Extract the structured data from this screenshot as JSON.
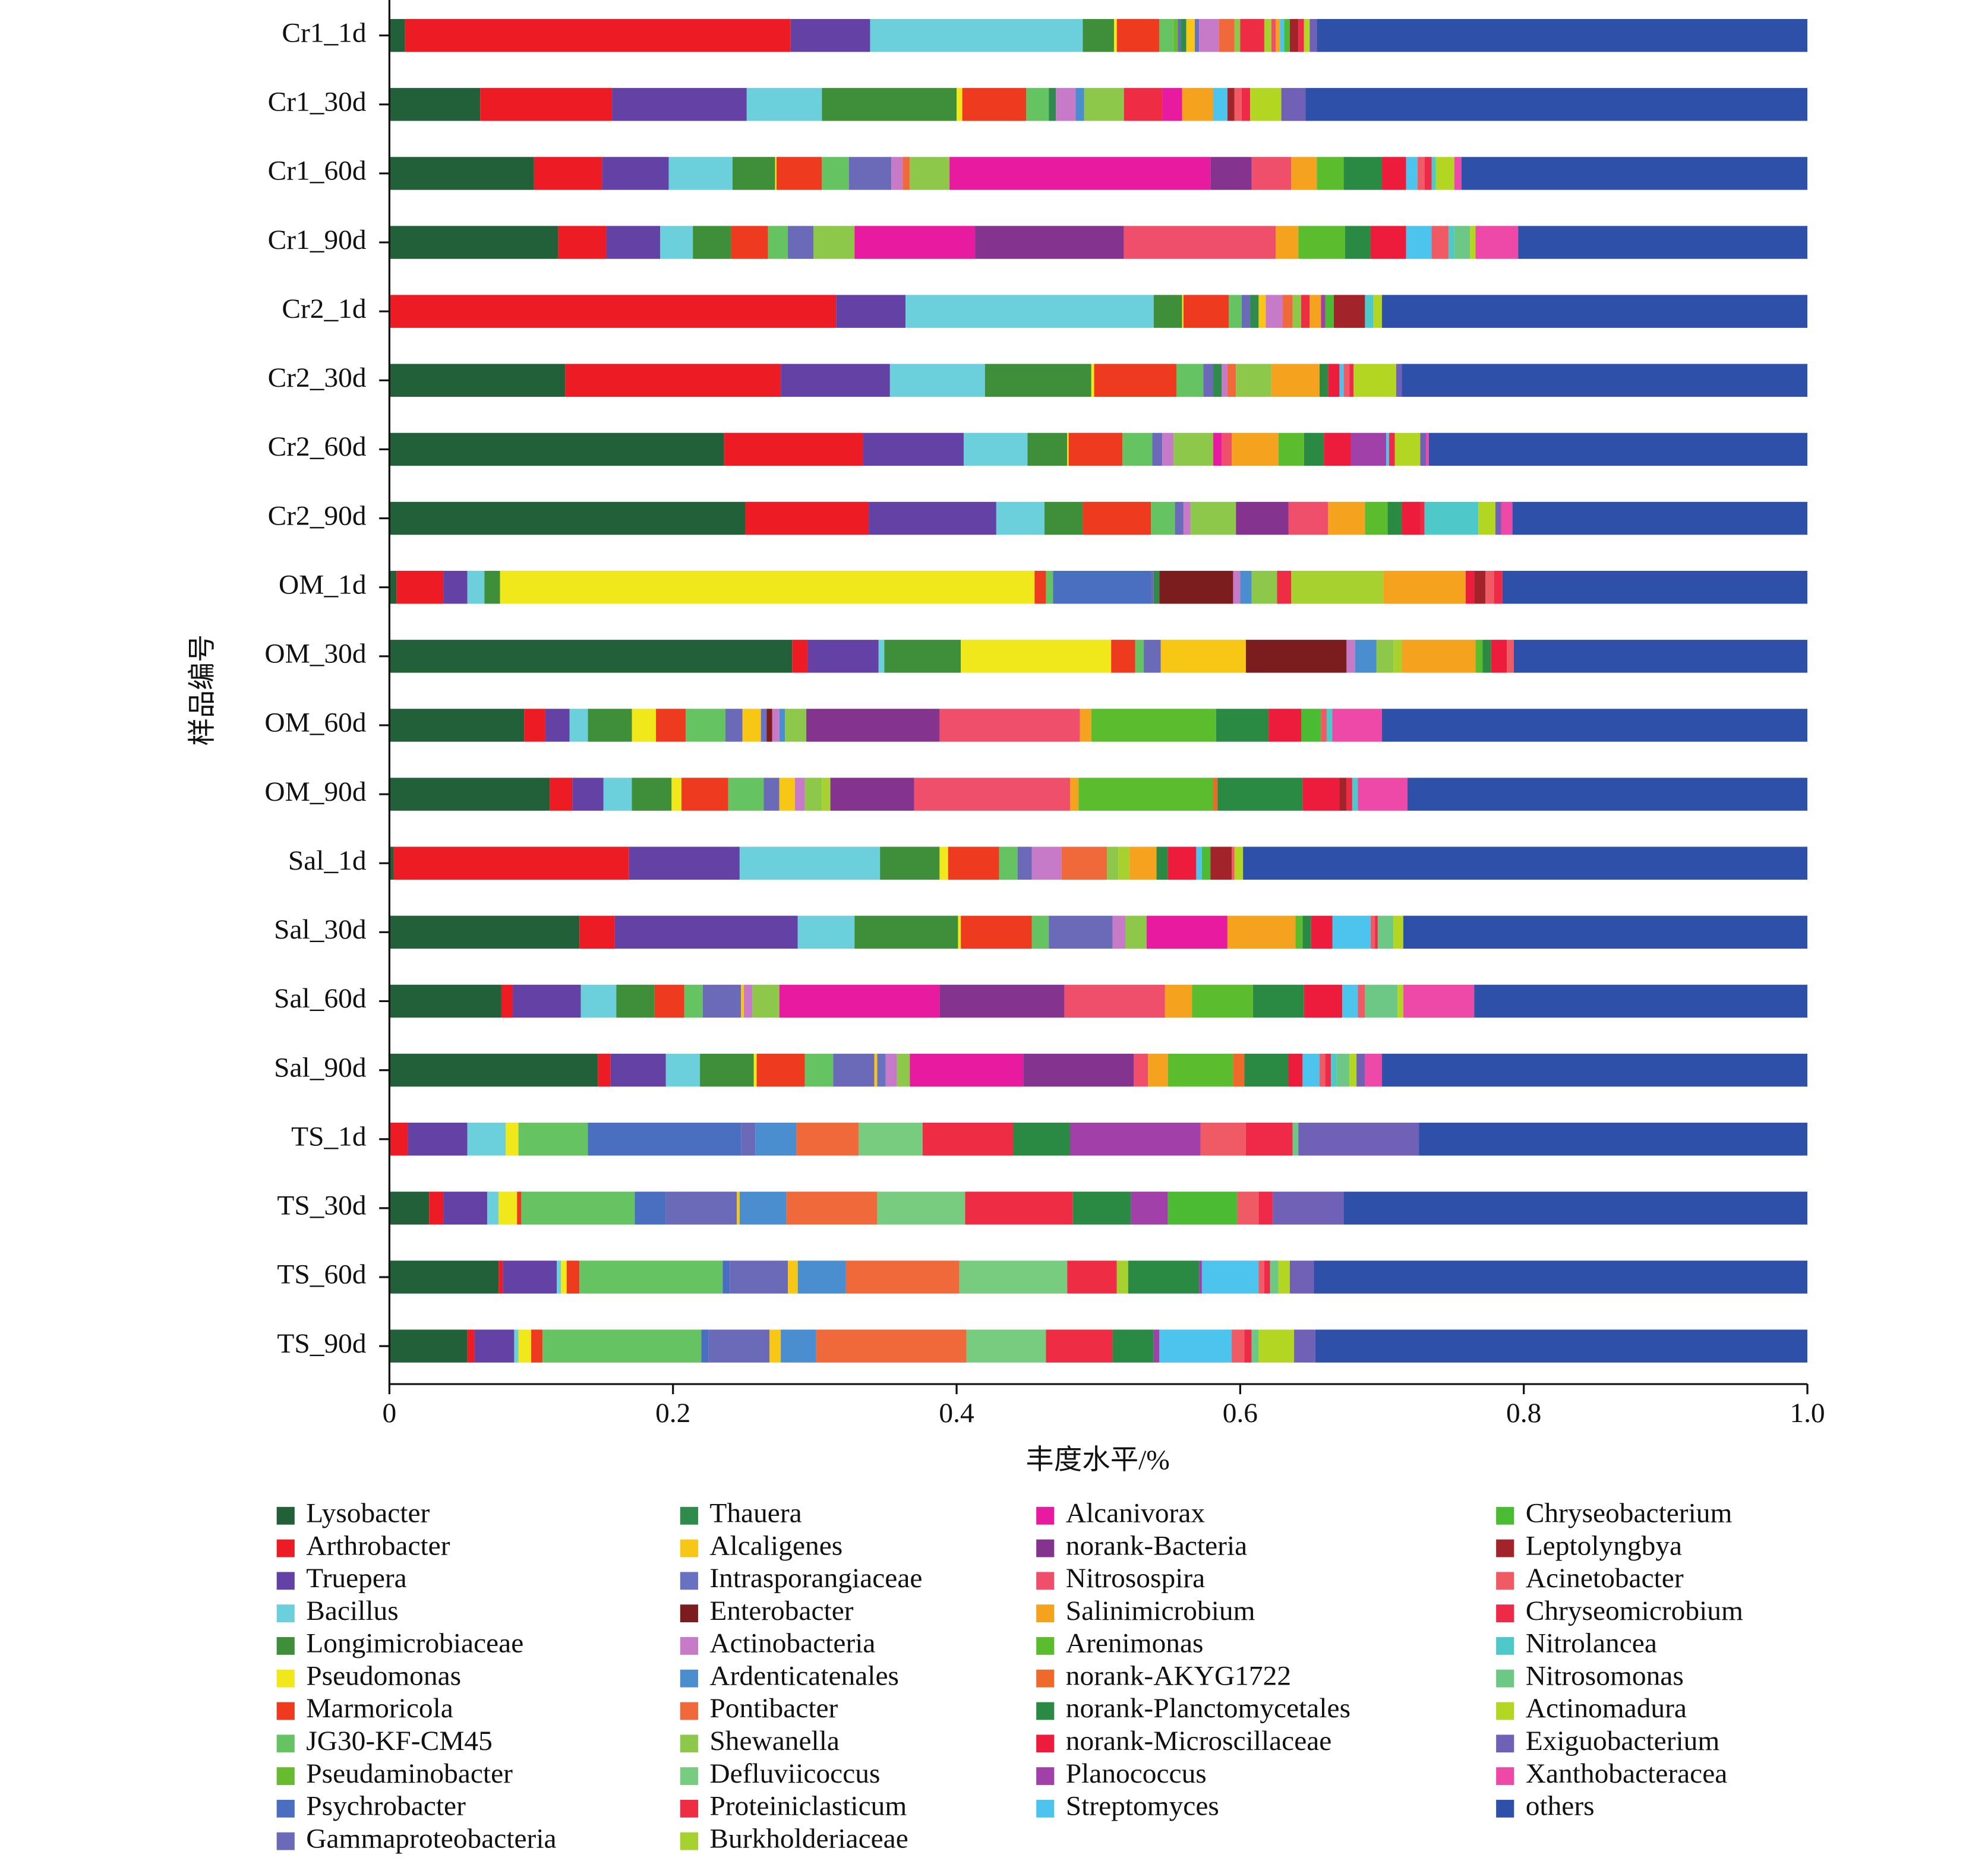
{
  "chart_data": {
    "type": "bar",
    "orientation": "horizontal",
    "stacked": true,
    "xlabel": "丰度水平/%",
    "ylabel": "样品编号",
    "categories": [
      "Cr1_1d",
      "Cr1_30d",
      "Cr1_60d",
      "Cr1_90d",
      "Cr2_1d",
      "Cr2_30d",
      "Cr2_60d",
      "Cr2_90d",
      "OM_1d",
      "OM_30d",
      "OM_60d",
      "OM_90d",
      "Sal_1d",
      "Sal_30d",
      "Sal_60d",
      "Sal_90d",
      "TS_1d",
      "TS_30d",
      "TS_60d",
      "TS_90d"
    ],
    "xlim": [
      0,
      1
    ],
    "xticks": [
      0,
      0.2,
      0.4,
      0.6,
      0.8,
      {
        "value": 1,
        "label": "1.0"
      }
    ],
    "series": [
      {
        "name": "Lysobacter",
        "color": "#22603a",
        "values": [
          0.011,
          0.064,
          0.102,
          0.119,
          0,
          0.124,
          0.236,
          0.251,
          0.005,
          0.284,
          0.095,
          0.113,
          0.003,
          0.134,
          0.079,
          0.147,
          0,
          0.028,
          0.077,
          0.055
        ]
      },
      {
        "name": "Arthrobacter",
        "color": "#ed1c24",
        "values": [
          0.272,
          0.093,
          0.048,
          0.034,
          0.315,
          0.152,
          0.098,
          0.087,
          0.033,
          0.011,
          0.015,
          0.016,
          0.166,
          0.025,
          0.008,
          0.009,
          0.013,
          0.01,
          0.003,
          0.005
        ]
      },
      {
        "name": "Truepera",
        "color": "#6441a4",
        "values": [
          0.056,
          0.095,
          0.047,
          0.038,
          0.049,
          0.077,
          0.071,
          0.09,
          0.017,
          0.05,
          0.017,
          0.022,
          0.078,
          0.129,
          0.048,
          0.039,
          0.042,
          0.031,
          0.038,
          0.028
        ]
      },
      {
        "name": "Bacillus",
        "color": "#6ccfdc",
        "values": [
          0.15,
          0.053,
          0.045,
          0.023,
          0.175,
          0.067,
          0.045,
          0.034,
          0.012,
          0.004,
          0.013,
          0.02,
          0.099,
          0.04,
          0.025,
          0.024,
          0.027,
          0.008,
          0.003,
          0.003
        ]
      },
      {
        "name": "Longimicrobiaceae",
        "color": "#3f8f3a",
        "values": [
          0.022,
          0.095,
          0.03,
          0.027,
          0.02,
          0.075,
          0.028,
          0.027,
          0.011,
          0.054,
          0.031,
          0.028,
          0.042,
          0.073,
          0.027,
          0.038,
          0,
          0,
          0,
          0
        ]
      },
      {
        "name": "Pseudomonas",
        "color": "#f0e81a",
        "values": [
          0.002,
          0.004,
          0.001,
          0,
          0.001,
          0.002,
          0.001,
          0,
          0.377,
          0.106,
          0.017,
          0.007,
          0.006,
          0.002,
          0,
          0.002,
          0.009,
          0.013,
          0.004,
          0.009
        ]
      },
      {
        "name": "Marmoricola",
        "color": "#ee3a1f",
        "values": [
          0.03,
          0.045,
          0.032,
          0.026,
          0.032,
          0.058,
          0.038,
          0.048,
          0.008,
          0.017,
          0.021,
          0.033,
          0.036,
          0.05,
          0.021,
          0.034,
          0,
          0.003,
          0.009,
          0.008
        ]
      },
      {
        "name": "JG30-KF-CM45",
        "color": "#66c361",
        "values": [
          0.01,
          0.016,
          0.019,
          0.014,
          0.009,
          0.019,
          0.021,
          0.017,
          0.005,
          0.006,
          0.028,
          0.025,
          0.013,
          0.012,
          0.013,
          0.02,
          0.049,
          0.08,
          0.101,
          0.112
        ]
      },
      {
        "name": "Pseudaminobacter",
        "color": "#66bb2e",
        "values": [
          0.003,
          0,
          0,
          0,
          0,
          0,
          0,
          0,
          0,
          0,
          0,
          0,
          0,
          0,
          0,
          0,
          0,
          0,
          0,
          0
        ]
      },
      {
        "name": "Psychrobacter",
        "color": "#4a6ec0",
        "values": [
          0,
          0,
          0,
          0,
          0,
          0,
          0,
          0,
          0.069,
          0,
          0,
          0,
          0,
          0,
          0,
          0,
          0.108,
          0.022,
          0.005,
          0.005
        ]
      },
      {
        "name": "Gammaproteobacteria",
        "color": "#6a6ab8",
        "values": [
          0.002,
          0,
          0.03,
          0.018,
          0.006,
          0.007,
          0.007,
          0.006,
          0.002,
          0.012,
          0.012,
          0.011,
          0.01,
          0.045,
          0.027,
          0.029,
          0.01,
          0.05,
          0.041,
          0.043
        ]
      },
      {
        "name": "Thauera",
        "color": "#2e8b4c",
        "values": [
          0.004,
          0.005,
          0,
          0,
          0.006,
          0.006,
          0,
          0,
          0.004,
          0,
          0,
          0,
          0,
          0,
          0,
          0,
          0,
          0,
          0,
          0
        ]
      },
      {
        "name": "Alcaligenes",
        "color": "#f8c716",
        "values": [
          0.006,
          0,
          0,
          0,
          0.005,
          0,
          0,
          0,
          0,
          0.06,
          0.013,
          0.011,
          0,
          0,
          0.002,
          0.002,
          0,
          0.002,
          0.007,
          0.008
        ]
      },
      {
        "name": "Intrasporangiaceae",
        "color": "#6872c0",
        "values": [
          0.003,
          0,
          0,
          0,
          0,
          0,
          0,
          0,
          0,
          0,
          0.004,
          0,
          0,
          0,
          0,
          0.006,
          0,
          0,
          0,
          0
        ]
      },
      {
        "name": "Enterobacter",
        "color": "#7b1c1f",
        "values": [
          0,
          0,
          0,
          0,
          0,
          0,
          0,
          0,
          0.052,
          0.071,
          0.004,
          0,
          0,
          0,
          0,
          0,
          0,
          0,
          0,
          0
        ]
      },
      {
        "name": "Actinobacteria",
        "color": "#c67ac7",
        "values": [
          0.014,
          0.014,
          0.008,
          0,
          0.012,
          0.004,
          0.008,
          0.005,
          0.005,
          0.006,
          0.005,
          0.007,
          0.021,
          0.009,
          0.006,
          0.008,
          0,
          0,
          0,
          0
        ]
      },
      {
        "name": "Ardenticatenales",
        "color": "#4a8ed0",
        "values": [
          0,
          0.006,
          0,
          0,
          0,
          0,
          0,
          0,
          0.008,
          0.015,
          0.004,
          0,
          0,
          0,
          0,
          0,
          0.029,
          0.033,
          0.034,
          0.025
        ]
      },
      {
        "name": "Pontibacter",
        "color": "#f0693a",
        "values": [
          0.011,
          0,
          0.005,
          0,
          0.007,
          0.006,
          0,
          0,
          0,
          0,
          0,
          0,
          0.032,
          0,
          0,
          0,
          0.044,
          0.064,
          0.08,
          0.106
        ]
      },
      {
        "name": "Shewanella",
        "color": "#8dc84a",
        "values": [
          0.004,
          0.028,
          0.028,
          0.029,
          0.006,
          0.025,
          0.028,
          0.032,
          0.018,
          0.012,
          0.015,
          0.012,
          0.008,
          0.015,
          0.019,
          0.009,
          0,
          0,
          0,
          0
        ]
      },
      {
        "name": "Defluviicoccus",
        "color": "#78cc80",
        "values": [
          0,
          0,
          0,
          0,
          0,
          0,
          0,
          0,
          0,
          0,
          0,
          0,
          0,
          0,
          0,
          0,
          0.045,
          0.062,
          0.076,
          0.056
        ]
      },
      {
        "name": "Proteiniclasticum",
        "color": "#ee2d45",
        "values": [
          0.017,
          0.027,
          0,
          0,
          0.006,
          0,
          0,
          0,
          0.01,
          0,
          0,
          0,
          0,
          0,
          0,
          0,
          0.064,
          0.076,
          0.035,
          0.047
        ]
      },
      {
        "name": "Burkholderiaceae",
        "color": "#a6d12e",
        "values": [
          0.005,
          0,
          0,
          0,
          0,
          0,
          0,
          0,
          0.065,
          0.006,
          0,
          0.006,
          0.008,
          0,
          0,
          0,
          0,
          0,
          0.008,
          0
        ]
      },
      {
        "name": "Alcanivorax",
        "color": "#e81aa0",
        "values": [
          0,
          0.014,
          0.184,
          0.085,
          0,
          0,
          0.006,
          0,
          0,
          0,
          0,
          0,
          0,
          0.057,
          0.113,
          0.08,
          0,
          0,
          0,
          0
        ]
      },
      {
        "name": "norank-Bacteria",
        "color": "#84348e",
        "values": [
          0,
          0,
          0.029,
          0.105,
          0,
          0,
          0,
          0.037,
          0,
          0,
          0.094,
          0.059,
          0,
          0,
          0.088,
          0.078,
          0,
          0,
          0,
          0
        ]
      },
      {
        "name": "Nitrosospira",
        "color": "#ef4f6a",
        "values": [
          0.003,
          0,
          0.028,
          0.107,
          0,
          0,
          0.007,
          0.028,
          0,
          0,
          0.099,
          0.11,
          0,
          0,
          0.071,
          0.01,
          0,
          0,
          0,
          0
        ]
      },
      {
        "name": "Salinimicrobium",
        "color": "#f5a31f",
        "values": [
          0.003,
          0.022,
          0.018,
          0.016,
          0.008,
          0.034,
          0.033,
          0.026,
          0.058,
          0.052,
          0.008,
          0.006,
          0.019,
          0.048,
          0.019,
          0.014,
          0,
          0,
          0,
          0
        ]
      },
      {
        "name": "Arenimonas",
        "color": "#5bbd2e",
        "values": [
          0,
          0,
          0.019,
          0.033,
          0,
          0,
          0.018,
          0.016,
          0,
          0.005,
          0.088,
          0.095,
          0,
          0.005,
          0.043,
          0.046,
          0,
          0,
          0,
          0
        ]
      },
      {
        "name": "norank-AKYG1722",
        "color": "#ee6a2a",
        "values": [
          0,
          0,
          0,
          0,
          0,
          0,
          0,
          0,
          0,
          0,
          0,
          0.003,
          0,
          0,
          0,
          0.008,
          0,
          0,
          0,
          0
        ]
      },
      {
        "name": "norank-Planctomycetales",
        "color": "#2a8a44",
        "values": [
          0,
          0,
          0.027,
          0.018,
          0,
          0.006,
          0.014,
          0.01,
          0,
          0.006,
          0.037,
          0.06,
          0.008,
          0.006,
          0.036,
          0.031,
          0.04,
          0.041,
          0.05,
          0.029
        ]
      },
      {
        "name": "norank-Microscillaceae",
        "color": "#ed1c3c",
        "values": [
          0,
          0,
          0.017,
          0.025,
          0,
          0.008,
          0.019,
          0.013,
          0.006,
          0.011,
          0.023,
          0.026,
          0.02,
          0.015,
          0.027,
          0.01,
          0,
          0,
          0,
          0
        ]
      },
      {
        "name": "Planococcus",
        "color": "#a040a8",
        "values": [
          0,
          0,
          0,
          0,
          0.003,
          0,
          0.025,
          0,
          0,
          0,
          0,
          0,
          0,
          0,
          0,
          0,
          0.092,
          0.026,
          0.002,
          0.004
        ]
      },
      {
        "name": "Streptomyces",
        "color": "#4cc4ee",
        "values": [
          0.003,
          0.01,
          0.008,
          0.018,
          0,
          0.003,
          0.002,
          0,
          0,
          0,
          0,
          0,
          0.004,
          0.027,
          0.011,
          0.012,
          0,
          0,
          0.04,
          0.051
        ]
      },
      {
        "name": "Chryseobacterium",
        "color": "#4cbb34",
        "values": [
          0.004,
          0,
          0,
          0,
          0.006,
          0,
          0,
          0,
          0,
          0,
          0.014,
          0,
          0.006,
          0,
          0,
          0,
          0,
          0.049,
          0,
          0
        ]
      },
      {
        "name": "Leptolyngbya",
        "color": "#a3232a",
        "values": [
          0.006,
          0.005,
          0,
          0,
          0.022,
          0,
          0,
          0,
          0.008,
          0,
          0,
          0.005,
          0.015,
          0,
          0,
          0,
          0,
          0,
          0,
          0
        ]
      },
      {
        "name": "Acinetobacter",
        "color": "#ef5a64",
        "values": [
          0,
          0.005,
          0.005,
          0.012,
          0,
          0.004,
          0,
          0,
          0.006,
          0.005,
          0.004,
          0,
          0.002,
          0.003,
          0.005,
          0.004,
          0.032,
          0.015,
          0.004,
          0.009
        ]
      },
      {
        "name": "Chryseomicrobium",
        "color": "#ee2a48",
        "values": [
          0.004,
          0.006,
          0.005,
          0,
          0,
          0.003,
          0.004,
          0.003,
          0.006,
          0,
          0,
          0.004,
          0,
          0.002,
          0,
          0.004,
          0.033,
          0.01,
          0.004,
          0.005
        ]
      },
      {
        "name": "Nitrolancea",
        "color": "#4ec8c8",
        "values": [
          0,
          0,
          0.003,
          0.004,
          0.006,
          0,
          0,
          0.038,
          0,
          0,
          0.004,
          0.004,
          0,
          0,
          0,
          0.004,
          0,
          0,
          0,
          0
        ]
      },
      {
        "name": "Nitrosomonas",
        "color": "#6cc884",
        "values": [
          0,
          0,
          0,
          0.011,
          0,
          0,
          0,
          0,
          0,
          0,
          0,
          0,
          0,
          0.011,
          0.023,
          0.009,
          0.004,
          0,
          0.006,
          0.005
        ]
      },
      {
        "name": "Actinomadura",
        "color": "#b2d622",
        "values": [
          0.004,
          0.022,
          0.013,
          0.004,
          0.006,
          0.03,
          0.018,
          0.012,
          0,
          0,
          0,
          0,
          0.006,
          0.007,
          0.004,
          0.005,
          0,
          0,
          0.008,
          0.025
        ]
      },
      {
        "name": "Exiguobacterium",
        "color": "#7060b6",
        "values": [
          0.005,
          0.017,
          0,
          0,
          0,
          0.004,
          0.004,
          0.004,
          0,
          0,
          0,
          0,
          0,
          0,
          0,
          0.006,
          0.085,
          0.05,
          0.017,
          0.015
        ]
      },
      {
        "name": "Xanthobacteracea",
        "color": "#ee48a8",
        "values": [
          0,
          0,
          0.005,
          0.03,
          0,
          0,
          0.002,
          0.008,
          0,
          0,
          0.035,
          0.035,
          0,
          0,
          0.05,
          0.012,
          0,
          0,
          0,
          0
        ]
      },
      {
        "name": "others",
        "color": "#2e50a8",
        "values": [
          0.346,
          0.354,
          0.244,
          0.204,
          0.3,
          0.286,
          0.267,
          0.208,
          0.215,
          0.207,
          0.3,
          0.282,
          0.398,
          0.285,
          0.235,
          0.3,
          0.274,
          0.327,
          0.348,
          0.347
        ]
      }
    ]
  }
}
